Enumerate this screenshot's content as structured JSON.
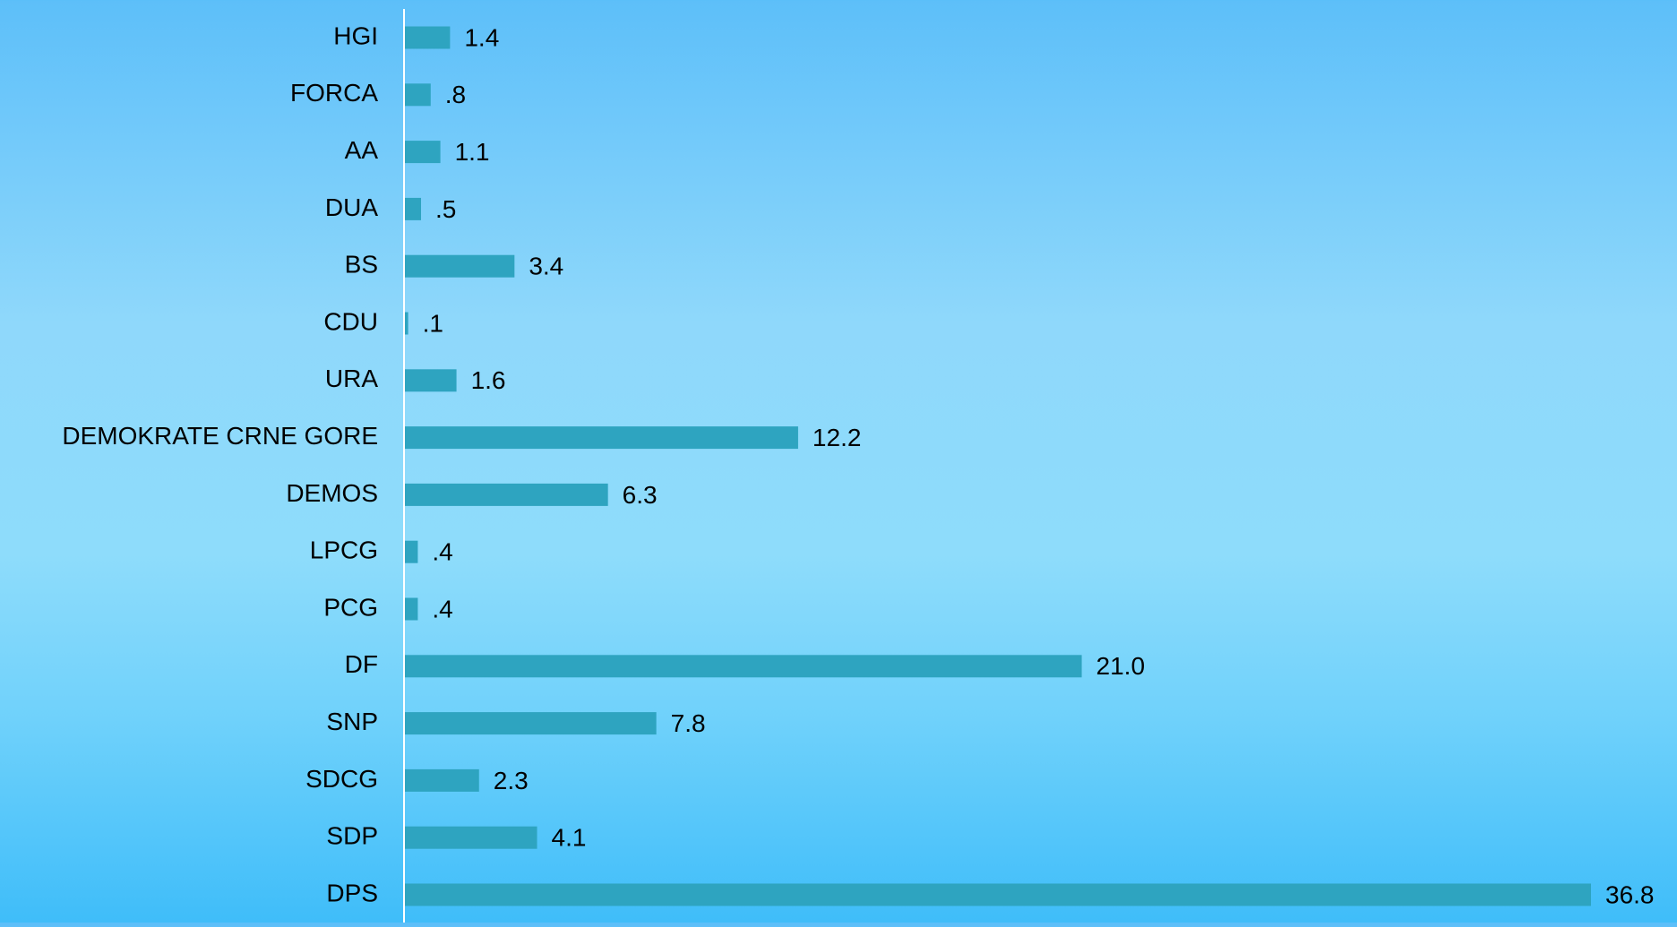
{
  "chart_data": {
    "type": "bar",
    "orientation": "horizontal",
    "categories": [
      "HGI",
      "FORCA",
      "AA",
      "DUA",
      "BS",
      "CDU",
      "URA",
      "DEMOKRATE CRNE GORE",
      "DEMOS",
      "LPCG",
      "PCG",
      "DF",
      "SNP",
      "SDCG",
      "SDP",
      "DPS"
    ],
    "values": [
      1.4,
      0.8,
      1.1,
      0.5,
      3.4,
      0.1,
      1.6,
      12.2,
      6.3,
      0.4,
      0.4,
      21.0,
      7.8,
      2.3,
      4.1,
      36.8
    ],
    "value_labels": [
      "1.4",
      ".8",
      "1.1",
      ".5",
      "3.4",
      ".1",
      "1.6",
      "12.2",
      "6.3",
      ".4",
      ".4",
      "21.0",
      "7.8",
      "2.3",
      "4.1",
      "36.8"
    ],
    "title": "",
    "xlabel": "",
    "ylabel": "",
    "xlim": [
      0,
      36.8
    ],
    "grid": false,
    "legend": "none",
    "colors": {
      "bar": "#2ea4c0",
      "axis_line": "#ffffff",
      "text": "#000000"
    }
  }
}
